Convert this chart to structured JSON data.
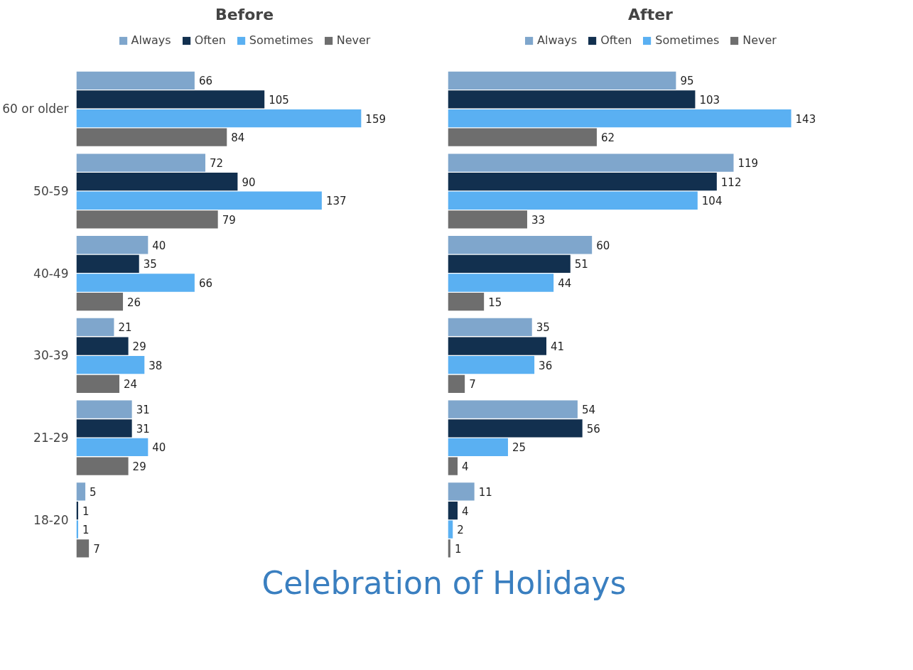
{
  "chart_data": [
    {
      "type": "bar",
      "orientation": "horizontal",
      "title": "Before",
      "legend": "top",
      "data_labels": true,
      "tick_labels": "y",
      "grid": false,
      "categories": [
        "60 or older",
        "50-59",
        "40-49",
        "30-39",
        "21-29",
        "18-20"
      ],
      "series": [
        {
          "name": "Always",
          "color": "#7fa6cc",
          "values": [
            66,
            72,
            40,
            21,
            31,
            5
          ]
        },
        {
          "name": "Often",
          "color": "#12304f",
          "values": [
            105,
            90,
            35,
            29,
            31,
            1
          ]
        },
        {
          "name": "Sometimes",
          "color": "#5ab0f2",
          "values": [
            159,
            137,
            66,
            38,
            40,
            1
          ]
        },
        {
          "name": "Never",
          "color": "#6e6e6e",
          "values": [
            84,
            79,
            26,
            24,
            29,
            7
          ]
        }
      ],
      "annotations": [
        "Celebration of Holidays"
      ]
    },
    {
      "type": "bar",
      "orientation": "horizontal",
      "title": "After",
      "legend": "top",
      "data_labels": true,
      "tick_labels": false,
      "grid": false,
      "categories": [
        null,
        null,
        null,
        null,
        null,
        null
      ],
      "series": [
        {
          "name": "Always",
          "color": "#7fa6cc",
          "values": [
            95,
            119,
            60,
            35,
            54,
            11
          ]
        },
        {
          "name": "Often",
          "color": "#12304f",
          "values": [
            103,
            112,
            51,
            41,
            56,
            4
          ]
        },
        {
          "name": "Sometimes",
          "color": "#5ab0f2",
          "values": [
            143,
            104,
            44,
            36,
            25,
            2
          ]
        },
        {
          "name": "Never",
          "color": "#6e6e6e",
          "values": [
            62,
            33,
            15,
            7,
            4,
            1
          ]
        }
      ]
    }
  ]
}
